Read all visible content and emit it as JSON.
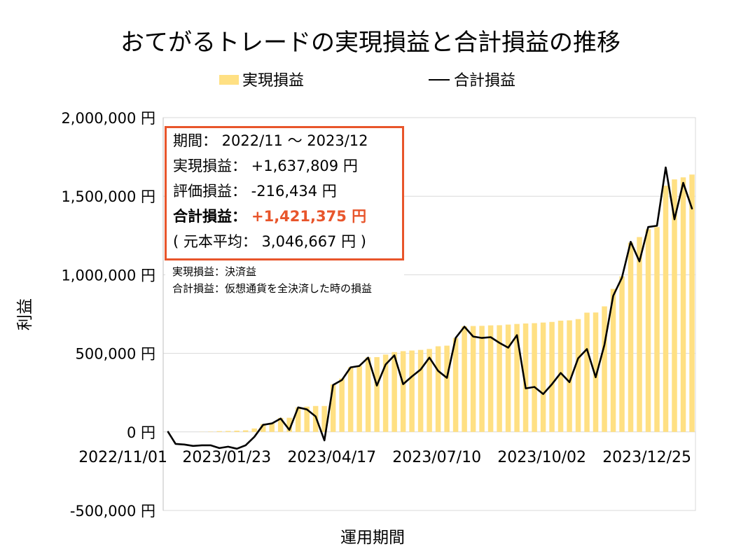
{
  "summary": {
    "period": "期間： 2022/11 ～ 2023/12",
    "realized": "実現損益： +1,637,809 円",
    "unrealized": "評価損益： -216,434 円",
    "total_label": "合計損益：",
    "total_value": "+1,421,375 円",
    "principal": "( 元本平均： 3,046,667 円 )"
  },
  "notes": [
    "実現損益：決済益",
    "合計損益：仮想通貨を全決済した時の損益"
  ],
  "colors": {
    "realized_bar": "#FFE083",
    "total_line": "#000000",
    "accent": "#E8552B",
    "gridline": "#D9D9D9"
  },
  "chart_data": {
    "type": "bar",
    "title": "おてがるトレードの実現損益と合計損益の推移",
    "xlabel": "運用期間",
    "ylabel": "利益",
    "legend_position": "top",
    "grid": true,
    "ylim": [
      -500000,
      2000000
    ],
    "y_ticks": [
      {
        "value": 2000000,
        "label": "2,000,000 円"
      },
      {
        "value": 1500000,
        "label": "1,500,000 円"
      },
      {
        "value": 1000000,
        "label": "1,000,000 円"
      },
      {
        "value": 500000,
        "label": "500,000 円"
      },
      {
        "value": 0,
        "label": "0 円"
      },
      {
        "value": -500000,
        "label": "-500,000 円"
      }
    ],
    "x_ticks": [
      "2022/11/01",
      "2023/01/23",
      "2023/04/17",
      "2023/07/10",
      "2023/10/02",
      "2023/12/25"
    ],
    "x": [
      "2022/11/01",
      "2022/11/07",
      "2022/11/14",
      "2022/11/21",
      "2022/11/28",
      "2022/12/05",
      "2022/12/12",
      "2022/12/19",
      "2022/12/26",
      "2023/01/02",
      "2023/01/09",
      "2023/01/16",
      "2023/01/23",
      "2023/01/30",
      "2023/02/06",
      "2023/02/13",
      "2023/02/20",
      "2023/02/27",
      "2023/03/06",
      "2023/03/13",
      "2023/03/20",
      "2023/03/27",
      "2023/04/03",
      "2023/04/10",
      "2023/04/17",
      "2023/04/24",
      "2023/05/01",
      "2023/05/08",
      "2023/05/15",
      "2023/05/22",
      "2023/05/29",
      "2023/06/05",
      "2023/06/12",
      "2023/06/19",
      "2023/06/26",
      "2023/07/03",
      "2023/07/10",
      "2023/07/17",
      "2023/07/24",
      "2023/07/31",
      "2023/08/07",
      "2023/08/14",
      "2023/08/21",
      "2023/08/28",
      "2023/09/04",
      "2023/09/11",
      "2023/09/18",
      "2023/09/25",
      "2023/10/02",
      "2023/10/09",
      "2023/10/16",
      "2023/10/23",
      "2023/10/30",
      "2023/11/06",
      "2023/11/13",
      "2023/11/20",
      "2023/11/27",
      "2023/12/04",
      "2023/12/11",
      "2023/12/18",
      "2023/12/25"
    ],
    "series": [
      {
        "name": "実現損益",
        "type": "bar",
        "values": [
          0,
          0,
          0,
          0,
          1000,
          2000,
          5000,
          6000,
          8000,
          10000,
          22000,
          50000,
          56000,
          89000,
          90000,
          156000,
          161000,
          165000,
          165000,
          302000,
          340000,
          411000,
          420000,
          475000,
          476000,
          492000,
          508000,
          514000,
          518000,
          522000,
          528000,
          545000,
          549000,
          598000,
          672000,
          674000,
          675000,
          678000,
          679000,
          683000,
          687000,
          690000,
          692000,
          696000,
          700000,
          708000,
          710000,
          718000,
          759000,
          760000,
          799000,
          910000,
          990000,
          1205000,
          1240000,
          1290000,
          1304000,
          1567000,
          1607000,
          1620000,
          1637809
        ]
      },
      {
        "name": "合計損益",
        "type": "line",
        "values": [
          0,
          -76000,
          -80000,
          -89000,
          -85000,
          -85000,
          -103000,
          -94000,
          -107000,
          -85000,
          -31000,
          45000,
          54000,
          85000,
          13000,
          156000,
          143000,
          98000,
          -54000,
          299000,
          330000,
          411000,
          420000,
          473000,
          295000,
          429000,
          487000,
          304000,
          353000,
          397000,
          473000,
          388000,
          344000,
          598000,
          670000,
          607000,
          598000,
          603000,
          567000,
          536000,
          616000,
          277000,
          286000,
          241000,
          304000,
          375000,
          317000,
          469000,
          527000,
          348000,
          554000,
          866000,
          982000,
          1210000,
          1085000,
          1304000,
          1312000,
          1683000,
          1353000,
          1585000,
          1421375
        ]
      }
    ]
  }
}
